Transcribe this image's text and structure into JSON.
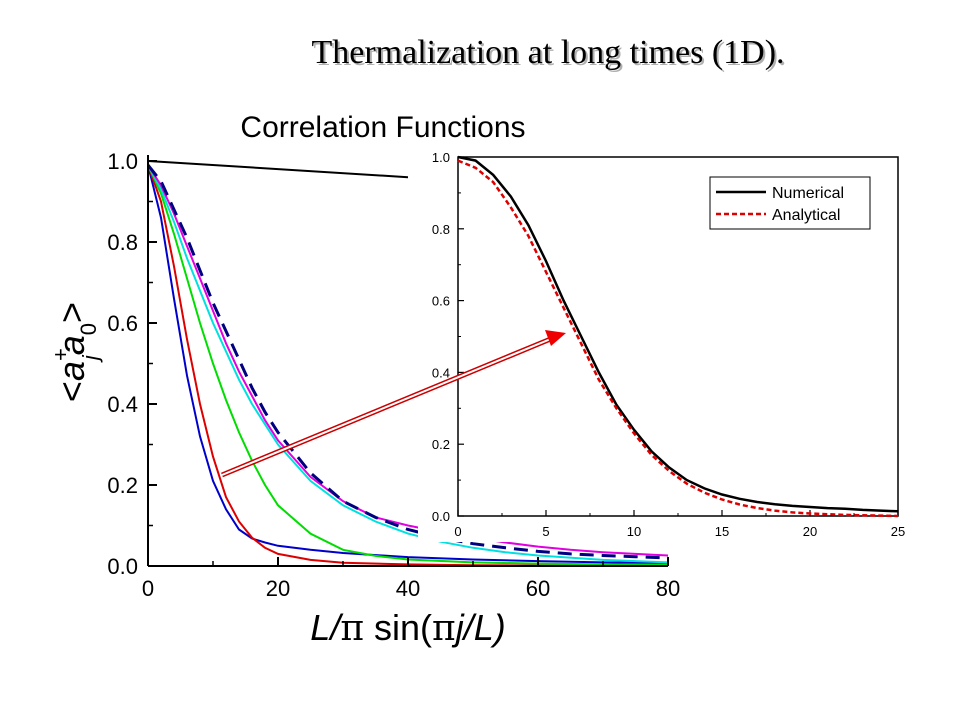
{
  "slide": {
    "title": "Thermalization at long times (1D)."
  },
  "chart_data": [
    {
      "type": "line",
      "title": "Correlation Functions",
      "xlabel_parts": [
        "L/",
        "π",
        " sin(",
        "π",
        "j/L)"
      ],
      "ylabel_parts": [
        "<a",
        "+",
        "j",
        "a",
        "0",
        ">"
      ],
      "xlim": [
        0,
        80
      ],
      "ylim": [
        0,
        1.0
      ],
      "xticks": [
        "0",
        "20",
        "40",
        "60",
        "80"
      ],
      "yticks": [
        "0.0",
        "0.2",
        "0.4",
        "0.6",
        "0.8",
        "1.0"
      ],
      "series": [
        {
          "color": "#000000",
          "style": "solid",
          "x": [
            0,
            40
          ],
          "y": [
            1.0,
            0.96
          ]
        },
        {
          "color": "#0000cc",
          "style": "solid",
          "x": [
            0,
            2,
            4,
            6,
            8,
            10,
            12,
            14,
            16,
            18,
            20,
            25,
            30,
            40,
            50,
            60,
            70,
            80
          ],
          "y": [
            0.99,
            0.86,
            0.66,
            0.47,
            0.32,
            0.21,
            0.14,
            0.09,
            0.068,
            0.058,
            0.05,
            0.04,
            0.032,
            0.022,
            0.016,
            0.012,
            0.009,
            0.007
          ]
        },
        {
          "color": "#dd0000",
          "style": "solid",
          "x": [
            0,
            2,
            4,
            6,
            8,
            10,
            12,
            14,
            16,
            18,
            20,
            25,
            30,
            40,
            50,
            60,
            70,
            80
          ],
          "y": [
            0.99,
            0.9,
            0.74,
            0.56,
            0.4,
            0.27,
            0.17,
            0.11,
            0.07,
            0.045,
            0.03,
            0.015,
            0.008,
            0.004,
            0.002,
            0.001,
            0.001,
            0.0
          ]
        },
        {
          "color": "#00dd00",
          "style": "solid",
          "x": [
            0,
            2,
            4,
            6,
            8,
            10,
            12,
            14,
            16,
            18,
            20,
            25,
            30,
            35,
            40,
            50,
            60,
            70,
            80
          ],
          "y": [
            0.99,
            0.92,
            0.82,
            0.71,
            0.6,
            0.5,
            0.41,
            0.33,
            0.26,
            0.2,
            0.15,
            0.08,
            0.04,
            0.025,
            0.016,
            0.009,
            0.006,
            0.004,
            0.003
          ]
        },
        {
          "color": "#00e0e0",
          "style": "solid",
          "x": [
            0,
            2,
            4,
            6,
            8,
            10,
            12,
            14,
            16,
            18,
            20,
            25,
            30,
            35,
            40,
            45,
            50,
            55,
            60,
            70,
            80
          ],
          "y": [
            0.99,
            0.93,
            0.85,
            0.76,
            0.68,
            0.6,
            0.53,
            0.46,
            0.4,
            0.35,
            0.3,
            0.21,
            0.15,
            0.11,
            0.08,
            0.06,
            0.045,
            0.034,
            0.026,
            0.015,
            0.009
          ]
        },
        {
          "color": "#e000e0",
          "style": "solid",
          "x": [
            0,
            2,
            4,
            6,
            8,
            10,
            12,
            14,
            16,
            18,
            20,
            25,
            30,
            35,
            40,
            45,
            50,
            55,
            60,
            65,
            70,
            75,
            80
          ],
          "y": [
            0.99,
            0.94,
            0.87,
            0.79,
            0.71,
            0.63,
            0.55,
            0.48,
            0.42,
            0.36,
            0.31,
            0.22,
            0.16,
            0.12,
            0.1,
            0.084,
            0.07,
            0.058,
            0.048,
            0.04,
            0.034,
            0.03,
            0.026
          ]
        },
        {
          "color": "#000080",
          "style": "dashed",
          "x": [
            0,
            2,
            4,
            6,
            8,
            10,
            12,
            14,
            16,
            18,
            20,
            25,
            30,
            35,
            40,
            45,
            50,
            55,
            60,
            65,
            70,
            75,
            80
          ],
          "y": [
            0.99,
            0.95,
            0.88,
            0.81,
            0.73,
            0.65,
            0.58,
            0.51,
            0.44,
            0.38,
            0.33,
            0.23,
            0.16,
            0.12,
            0.09,
            0.07,
            0.055,
            0.045,
            0.036,
            0.03,
            0.026,
            0.023,
            0.02
          ]
        }
      ]
    },
    {
      "type": "line",
      "title": "",
      "xlim": [
        0,
        25
      ],
      "ylim": [
        0,
        1.0
      ],
      "xticks": [
        "0",
        "5",
        "10",
        "15",
        "20",
        "25"
      ],
      "yticks": [
        "0.0",
        "0.2",
        "0.4",
        "0.6",
        "0.8",
        "1.0"
      ],
      "legend_position": "top-right",
      "series": [
        {
          "name": "Numerical",
          "color": "#000000",
          "style": "solid",
          "x": [
            0,
            1,
            2,
            3,
            4,
            5,
            6,
            7,
            8,
            9,
            10,
            11,
            12,
            13,
            14,
            15,
            16,
            17,
            18,
            19,
            20,
            21,
            22,
            23,
            24,
            25
          ],
          "y": [
            1.0,
            0.99,
            0.95,
            0.89,
            0.81,
            0.71,
            0.6,
            0.5,
            0.4,
            0.31,
            0.24,
            0.18,
            0.135,
            0.1,
            0.077,
            0.06,
            0.048,
            0.039,
            0.033,
            0.028,
            0.025,
            0.022,
            0.02,
            0.017,
            0.015,
            0.013
          ]
        },
        {
          "name": "Analytical",
          "color": "#dd0000",
          "style": "dotted",
          "x": [
            0,
            1,
            2,
            3,
            4,
            5,
            6,
            7,
            8,
            9,
            10,
            11,
            12,
            13,
            14,
            15,
            16,
            17,
            18,
            19,
            20,
            21,
            22,
            23,
            24,
            25
          ],
          "y": [
            0.99,
            0.97,
            0.93,
            0.86,
            0.78,
            0.68,
            0.58,
            0.48,
            0.38,
            0.3,
            0.23,
            0.17,
            0.125,
            0.09,
            0.065,
            0.046,
            0.032,
            0.022,
            0.015,
            0.01,
            0.007,
            0.005,
            0.003,
            0.002,
            0.001,
            0.0
          ]
        }
      ]
    }
  ]
}
